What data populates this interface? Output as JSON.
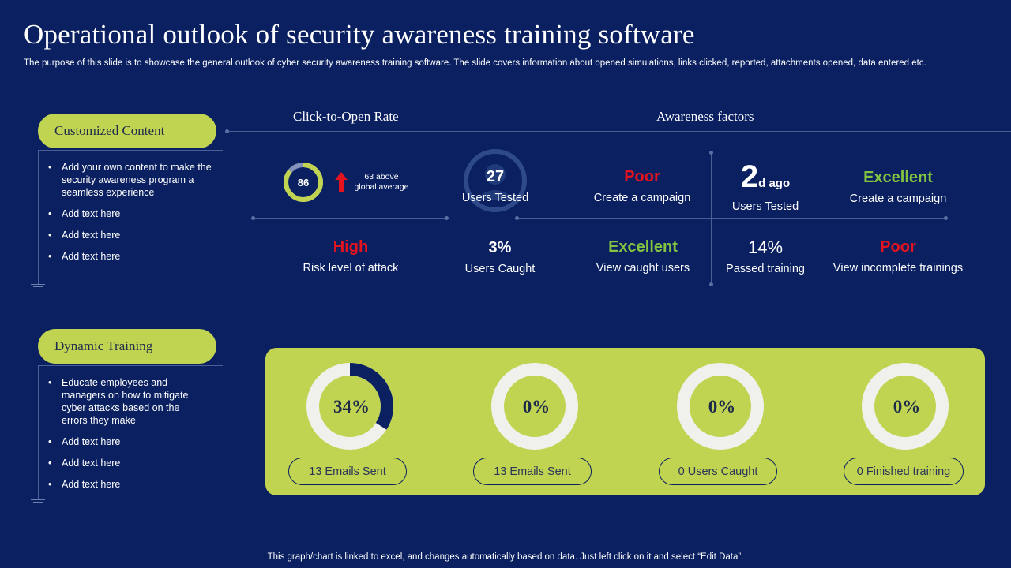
{
  "title": "Operational outlook of security awareness training software",
  "subtitle": "The purpose of this slide is to showcase the general outlook of cyber security awareness training software. The slide covers information about opened simulations, links clicked, reported, attachments opened, data entered etc.",
  "sections": [
    {
      "label": "Customized Content",
      "bullets": [
        "Add your own content to make the security awareness program a seamless experience",
        "Add text here",
        "Add text here",
        "Add text here"
      ]
    },
    {
      "label": "Dynamic Training",
      "bullets": [
        "Educate employees and managers on how to mitigate cyber attacks based on the errors they make",
        "Add text here",
        "Add text here",
        "Add text here"
      ]
    }
  ],
  "headers": {
    "click_to_open": "Click-to-Open Rate",
    "awareness": "Awareness factors"
  },
  "click_rate": {
    "value": "86",
    "fraction": 0.86,
    "note_line1": "63 above",
    "note_line2": "global average"
  },
  "users_tested": {
    "value": "27",
    "label": "Users Tested"
  },
  "row1": [
    {
      "value": "Poor",
      "label": "Create a campaign",
      "tone": "red"
    },
    {
      "value_big": "2",
      "value_small": "d ago",
      "label": "Users Tested",
      "tone": "white"
    },
    {
      "value": "Excellent",
      "label": "Create a campaign",
      "tone": "green"
    }
  ],
  "row2": [
    {
      "value": "High",
      "label": "Risk level of attack",
      "tone": "red"
    },
    {
      "value": "3%",
      "label": "Users Caught",
      "tone": "white"
    },
    {
      "value": "Excellent",
      "label": "View caught users",
      "tone": "green"
    },
    {
      "value": "14%",
      "label": "Passed training",
      "tone": "white"
    },
    {
      "value": "Poor",
      "label": "View incomplete trainings",
      "tone": "red"
    }
  ],
  "donuts": [
    {
      "percent": "34%",
      "fraction": 0.34,
      "badge": "13 Emails Sent"
    },
    {
      "percent": "0%",
      "fraction": 0,
      "badge": "13 Emails Sent"
    },
    {
      "percent": "0%",
      "fraction": 0,
      "badge": "0 Users Caught"
    },
    {
      "percent": "0%",
      "fraction": 0,
      "badge": "0 Finished training"
    }
  ],
  "colors": {
    "background": "#0a2060",
    "accent": "#c1d452",
    "navy": "#0a2060",
    "red": "#e3131f",
    "green": "#82c341",
    "ring": "#f0f0ec"
  },
  "footer": "This graph/chart is linked to excel, and changes automatically based on data. Just left click on it and select “Edit Data”."
}
